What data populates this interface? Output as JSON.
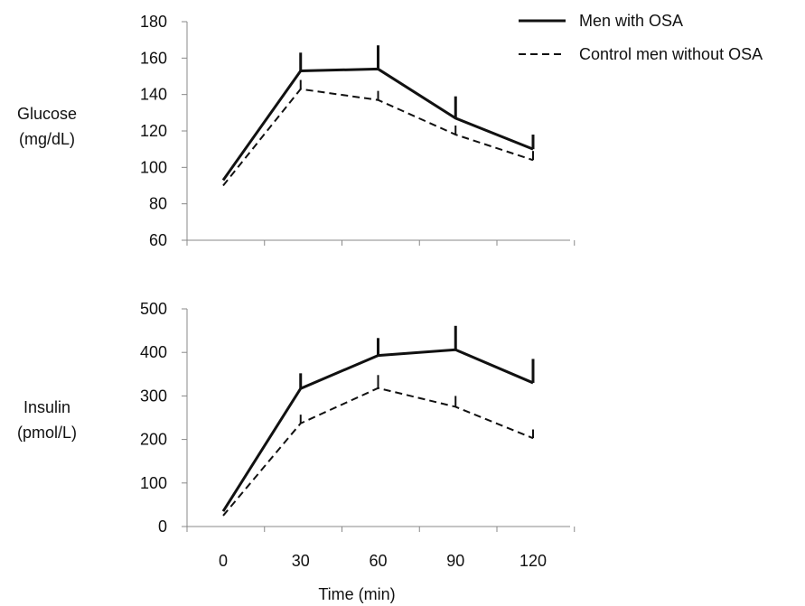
{
  "chart_data": [
    {
      "type": "line",
      "ylabel_lines": [
        "Glucose",
        "(mg/dL)"
      ],
      "ylim": [
        60,
        180
      ],
      "yticks": [
        60,
        80,
        100,
        120,
        140,
        160,
        180
      ],
      "x": [
        0,
        30,
        60,
        90,
        120
      ],
      "series": [
        {
          "name": "Men with OSA",
          "style": "solid",
          "values": [
            93,
            153,
            154,
            127,
            110
          ],
          "error": [
            0,
            10,
            13,
            12,
            8
          ]
        },
        {
          "name": "Control men without OSA",
          "style": "dashed",
          "values": [
            90,
            143,
            137,
            118,
            104
          ],
          "error": [
            0,
            5,
            5,
            5,
            5
          ]
        }
      ]
    },
    {
      "type": "line",
      "ylabel_lines": [
        "Insulin",
        "(pmol/L)"
      ],
      "ylim": [
        0,
        500
      ],
      "yticks": [
        0,
        100,
        200,
        300,
        400,
        500
      ],
      "x": [
        0,
        30,
        60,
        90,
        120
      ],
      "xticks": [
        0,
        30,
        60,
        90,
        120
      ],
      "xlabel": "Time (min)",
      "series": [
        {
          "name": "Men with OSA",
          "style": "solid",
          "values": [
            35,
            317,
            393,
            406,
            330
          ],
          "error": [
            0,
            35,
            40,
            55,
            55
          ]
        },
        {
          "name": "Control men without OSA",
          "style": "dashed",
          "values": [
            25,
            237,
            318,
            275,
            203
          ],
          "error": [
            0,
            20,
            30,
            25,
            20
          ]
        }
      ]
    }
  ],
  "legend": {
    "position": "top-right",
    "items": [
      {
        "label": "Men with OSA",
        "style": "solid"
      },
      {
        "label": "Control men without OSA",
        "style": "dashed"
      }
    ]
  }
}
